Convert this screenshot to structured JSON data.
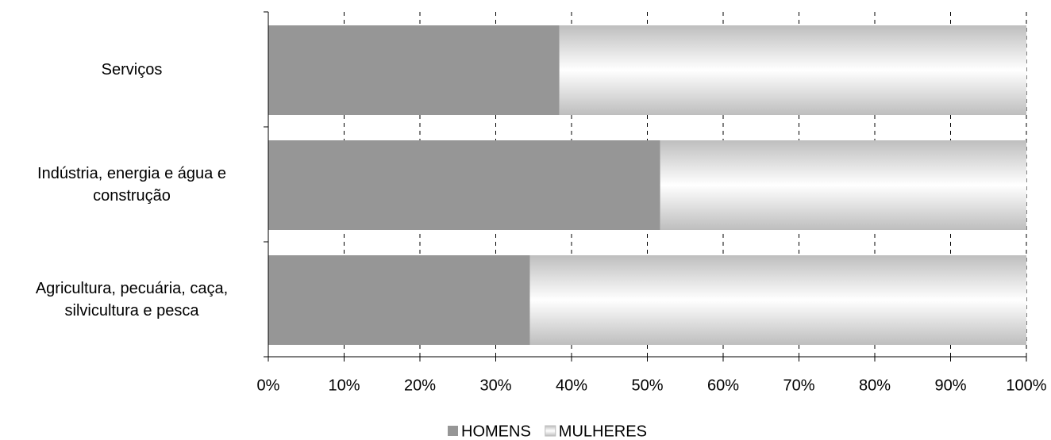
{
  "chart_data": {
    "type": "stacked-barh",
    "categories": [
      "Serviços",
      "Indústria, energia e água e construção",
      "Agricultura, pecuária, caça, silvicultura e pesca"
    ],
    "series": [
      {
        "name": "HOMENS",
        "color": "#969696",
        "values": [
          38.4,
          51.7,
          34.5
        ]
      },
      {
        "name": "MULHERES",
        "color": "#bebebe",
        "values": [
          61.6,
          48.3,
          65.5
        ]
      }
    ],
    "xlim": [
      0,
      100
    ],
    "xticks": [
      {
        "value": 0,
        "label": "0%"
      },
      {
        "value": 10,
        "label": "10%"
      },
      {
        "value": 20,
        "label": "20%"
      },
      {
        "value": 30,
        "label": "30%"
      },
      {
        "value": 40,
        "label": "40%"
      },
      {
        "value": 50,
        "label": "50%"
      },
      {
        "value": 60,
        "label": "60%"
      },
      {
        "value": 70,
        "label": "70%"
      },
      {
        "value": 80,
        "label": "80%"
      },
      {
        "value": 90,
        "label": "90%"
      },
      {
        "value": 100,
        "label": "100%"
      }
    ],
    "grid": true,
    "legend": "bottom"
  }
}
